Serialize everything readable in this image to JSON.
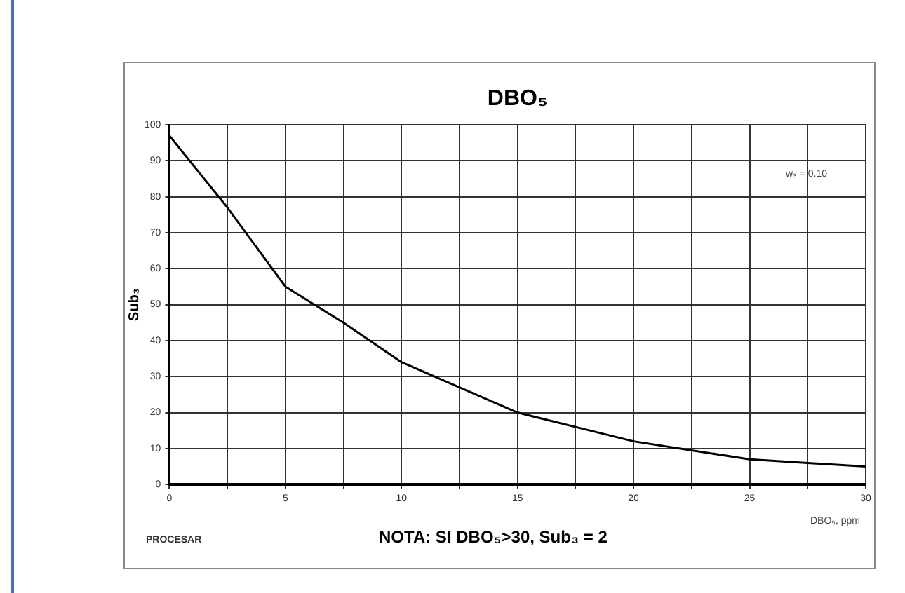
{
  "chart_data": {
    "type": "line",
    "title": "DBO₅",
    "xlabel": "DBO₅, ppm",
    "ylabel": "Sub₃",
    "x": [
      0,
      2.5,
      5,
      7.5,
      10,
      12.5,
      15,
      17.5,
      20,
      22.5,
      25,
      27.5,
      30
    ],
    "series": [
      {
        "color": "#000000",
        "values": [
          97,
          77,
          55,
          45,
          34,
          27,
          20,
          16,
          12,
          9.5,
          7,
          6,
          5
        ]
      }
    ],
    "xlim": [
      0,
      30
    ],
    "xticks": [
      0,
      {
        "value": 2.5,
        "label": null
      },
      5,
      {
        "value": 7.5,
        "label": null
      },
      10,
      {
        "value": 12.5,
        "label": null
      },
      15,
      {
        "value": 17.5,
        "label": null
      },
      20,
      {
        "value": 22.5,
        "label": null
      },
      25,
      {
        "value": 27.5,
        "label": null
      },
      30
    ],
    "ylim": [
      0,
      100
    ],
    "yticks": [
      0,
      10,
      20,
      30,
      40,
      50,
      60,
      70,
      80,
      90,
      100
    ],
    "grid": true,
    "legend": false,
    "marker": "none",
    "line_style": "solid",
    "annotations": [
      "w₃ = 0.10",
      "PROCESAR",
      "NOTA: SI DBO₅>30, Sub₃ = 2"
    ]
  }
}
